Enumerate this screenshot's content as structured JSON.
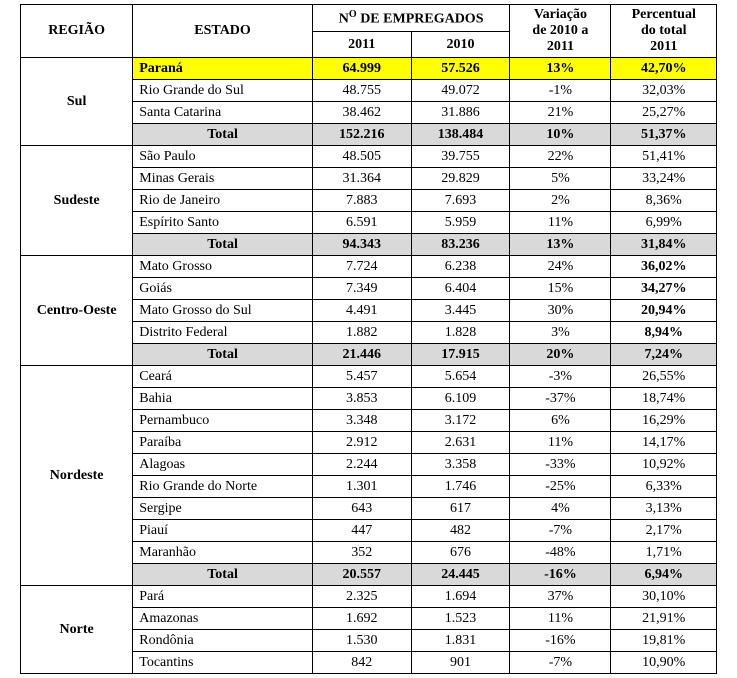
{
  "headers": {
    "regiao": "REGIÃO",
    "estado": "ESTADO",
    "empregados_group_prefix": "N",
    "empregados_group_sup": "O",
    "empregados_group_suffix": " DE EMPREGADOS",
    "y2011": "2011",
    "y2010": "2010",
    "variacao_l1": "Variação",
    "variacao_l2": "de 2010 a",
    "variacao_l3": "2011",
    "pct_l1": "Percentual",
    "pct_l2": "do total",
    "pct_l3": "2011"
  },
  "total_label": "Total",
  "regions": [
    {
      "name": "Sul",
      "rows": [
        {
          "estado": "Paraná",
          "v2011": "64.999",
          "v2010": "57.526",
          "var": "13%",
          "pct": "42,70%",
          "highlight": true
        },
        {
          "estado": "Rio Grande do Sul",
          "v2011": "48.755",
          "v2010": "49.072",
          "var": "-1%",
          "pct": "32,03%"
        },
        {
          "estado": "Santa Catarina",
          "v2011": "38.462",
          "v2010": "31.886",
          "var": "21%",
          "pct": "25,27%"
        }
      ],
      "total": {
        "v2011": "152.216",
        "v2010": "138.484",
        "var": "10%",
        "pct": "51,37%"
      }
    },
    {
      "name": "Sudeste",
      "rows": [
        {
          "estado": "São Paulo",
          "v2011": "48.505",
          "v2010": "39.755",
          "var": "22%",
          "pct": "51,41%"
        },
        {
          "estado": "Minas Gerais",
          "v2011": "31.364",
          "v2010": "29.829",
          "var": "5%",
          "pct": "33,24%"
        },
        {
          "estado": "Rio de Janeiro",
          "v2011": "7.883",
          "v2010": "7.693",
          "var": "2%",
          "pct": "8,36%"
        },
        {
          "estado": "Espírito Santo",
          "v2011": "6.591",
          "v2010": "5.959",
          "var": "11%",
          "pct": "6,99%"
        }
      ],
      "total": {
        "v2011": "94.343",
        "v2010": "83.236",
        "var": "13%",
        "pct": "31,84%"
      }
    },
    {
      "name": "Centro-Oeste",
      "rows": [
        {
          "estado": "Mato Grosso",
          "v2011": "7.724",
          "v2010": "6.238",
          "var": "24%",
          "pct": "36,02%",
          "pct_bold": true
        },
        {
          "estado": "Goiás",
          "v2011": "7.349",
          "v2010": "6.404",
          "var": "15%",
          "pct": "34,27%",
          "pct_bold": true
        },
        {
          "estado": "Mato Grosso do Sul",
          "v2011": "4.491",
          "v2010": "3.445",
          "var": "30%",
          "pct": "20,94%",
          "pct_bold": true
        },
        {
          "estado": "Distrito Federal",
          "v2011": "1.882",
          "v2010": "1.828",
          "var": "3%",
          "pct": "8,94%",
          "pct_bold": true
        }
      ],
      "total": {
        "v2011": "21.446",
        "v2010": "17.915",
        "var": "20%",
        "pct": "7,24%"
      }
    },
    {
      "name": "Nordeste",
      "rows": [
        {
          "estado": "Ceará",
          "v2011": "5.457",
          "v2010": "5.654",
          "var": "-3%",
          "pct": "26,55%"
        },
        {
          "estado": "Bahia",
          "v2011": "3.853",
          "v2010": "6.109",
          "var": "-37%",
          "pct": "18,74%"
        },
        {
          "estado": "Pernambuco",
          "v2011": "3.348",
          "v2010": "3.172",
          "var": "6%",
          "pct": "16,29%"
        },
        {
          "estado": "Paraíba",
          "v2011": "2.912",
          "v2010": "2.631",
          "var": "11%",
          "pct": "14,17%"
        },
        {
          "estado": "Alagoas",
          "v2011": "2.244",
          "v2010": "3.358",
          "var": "-33%",
          "pct": "10,92%"
        },
        {
          "estado": "Rio Grande do Norte",
          "v2011": "1.301",
          "v2010": "1.746",
          "var": "-25%",
          "pct": "6,33%"
        },
        {
          "estado": "Sergipe",
          "v2011": "643",
          "v2010": "617",
          "var": "4%",
          "pct": "3,13%"
        },
        {
          "estado": "Piauí",
          "v2011": "447",
          "v2010": "482",
          "var": "-7%",
          "pct": "2,17%"
        },
        {
          "estado": "Maranhão",
          "v2011": "352",
          "v2010": "676",
          "var": "-48%",
          "pct": "1,71%"
        }
      ],
      "total": {
        "v2011": "20.557",
        "v2010": "24.445",
        "var": "-16%",
        "pct": "6,94%"
      }
    },
    {
      "name": "Norte",
      "rows": [
        {
          "estado": "Pará",
          "v2011": "2.325",
          "v2010": "1.694",
          "var": "37%",
          "pct": "30,10%"
        },
        {
          "estado": "Amazonas",
          "v2011": "1.692",
          "v2010": "1.523",
          "var": "11%",
          "pct": "21,91%"
        },
        {
          "estado": "Rondônia",
          "v2011": "1.530",
          "v2010": "1.831",
          "var": "-16%",
          "pct": "19,81%"
        },
        {
          "estado": "Tocantins",
          "v2011": "842",
          "v2010": "901",
          "var": "-7%",
          "pct": "10,90%"
        }
      ]
    }
  ]
}
